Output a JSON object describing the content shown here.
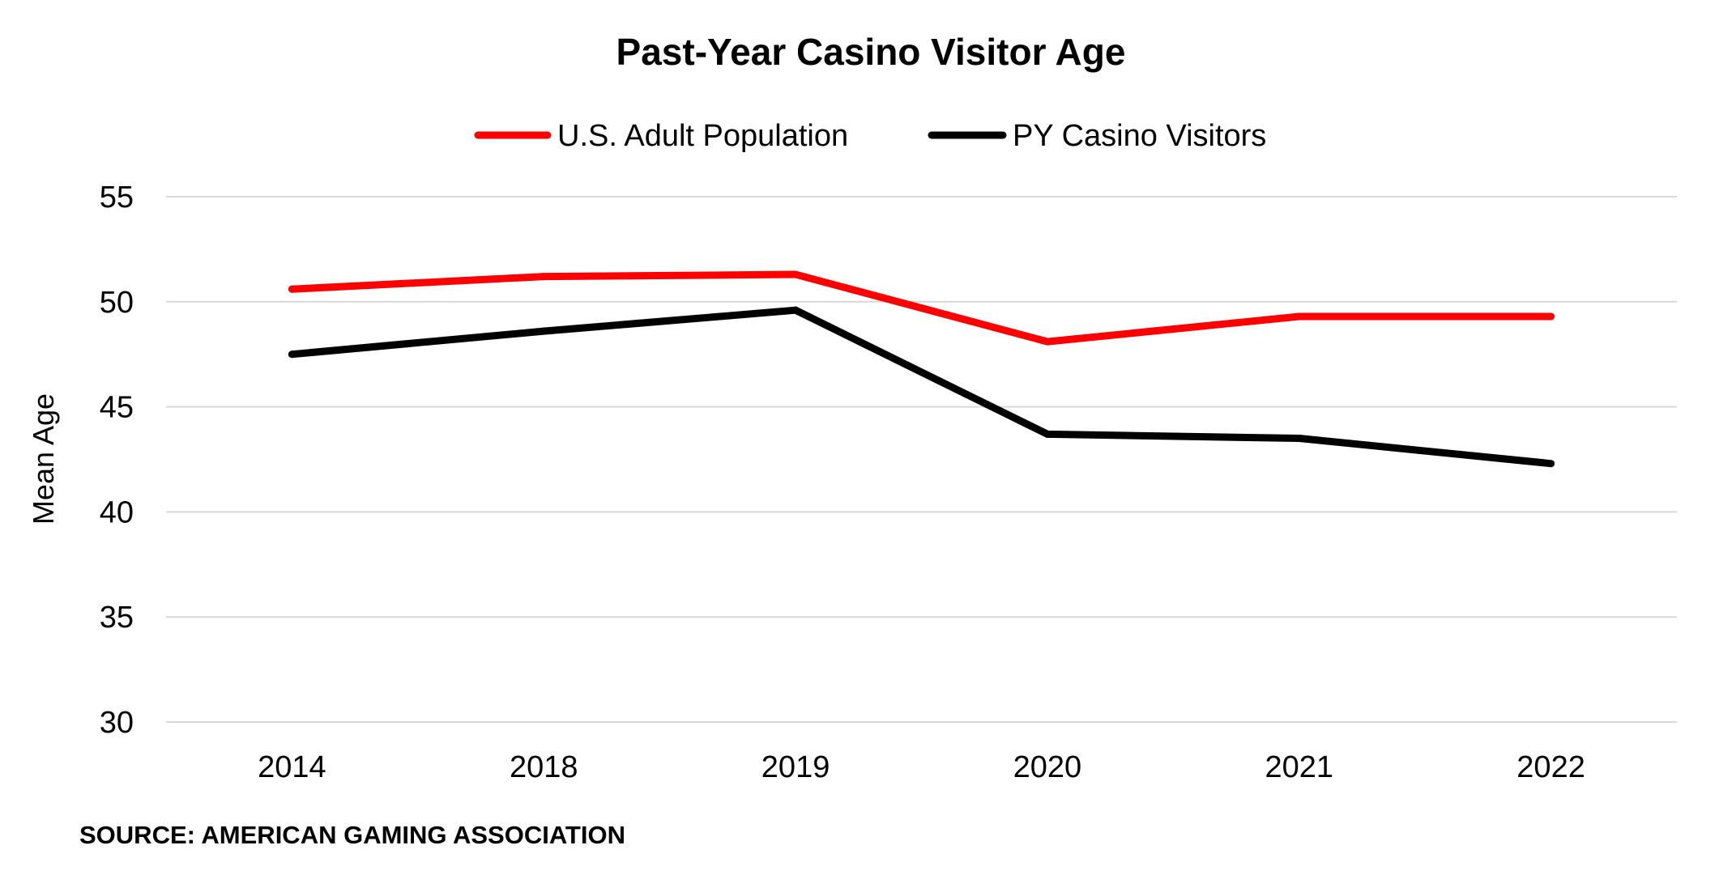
{
  "chart_data": {
    "type": "line",
    "title": "Past-Year Casino Visitor Age",
    "ylabel": "Mean Age",
    "xlabel": "",
    "categories": [
      "2014",
      "2018",
      "2019",
      "2020",
      "2021",
      "2022"
    ],
    "ylim": [
      30,
      55
    ],
    "yticks": [
      55,
      50,
      45,
      40,
      35,
      30
    ],
    "grid": true,
    "legend_position": "top",
    "series": [
      {
        "name": "U.S. Adult Population",
        "color": "#ff0000",
        "values": [
          50.6,
          51.2,
          51.3,
          48.1,
          49.3,
          49.3
        ]
      },
      {
        "name": "PY Casino Visitors",
        "color": "#000000",
        "values": [
          47.5,
          48.6,
          49.6,
          43.7,
          43.5,
          42.3
        ]
      }
    ]
  },
  "source": "SOURCE: AMERICAN GAMING ASSOCIATION"
}
